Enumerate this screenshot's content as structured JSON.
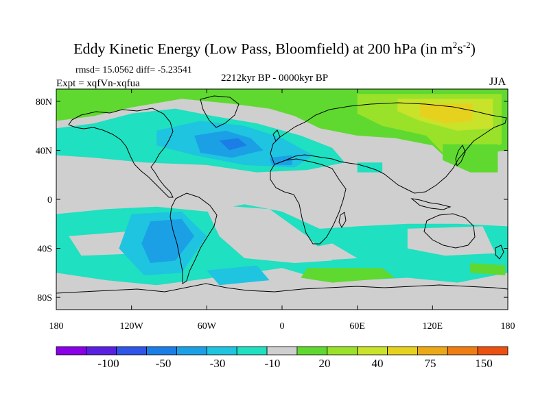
{
  "chart_data": {
    "type": "heatmap",
    "title": "Eddy Kinetic Energy (Low Pass, Bloomfield) at 200 hPa (in m",
    "title_unit_sup1": "2",
    "title_unit_mid": "s",
    "title_unit_sup2": "-2",
    "title_tail": ")",
    "stats": "rmsd= 15.0562 diff= -5.23541",
    "experiment": "Expt = xqfVn-xqfua",
    "period": "2212kyr BP - 0000kyr BP",
    "season": "JJA",
    "x_ticks": [
      "180",
      "120W",
      "60W",
      "0",
      "60E",
      "120E",
      "180"
    ],
    "y_ticks": [
      "80N",
      "40N",
      "0",
      "40S",
      "80S"
    ],
    "xlim": [
      -180,
      180
    ],
    "ylim": [
      -90,
      90
    ],
    "colorbar": {
      "colors": [
        "#8a00e6",
        "#5a1fe0",
        "#2f54e8",
        "#1a7ee6",
        "#1ba0e6",
        "#1ec4e0",
        "#1fe0c0",
        "#cfcfcf",
        "#5fd92f",
        "#9ae22a",
        "#c9e22a",
        "#e6d21e",
        "#eda815",
        "#ee7d12",
        "#ec5010"
      ],
      "labels": [
        "-100",
        "-50",
        "-30",
        "-10",
        "20",
        "40",
        "75",
        "150"
      ]
    },
    "colors": {
      "neutral": "#cfcfcf",
      "green": "#5fd92f",
      "yellow_green": "#9ae22a",
      "lime": "#c9e22a",
      "yellow": "#e6d21e",
      "teal": "#1fe0c0",
      "cyan": "#1ec4e0",
      "light_blue": "#1ba0e6",
      "blue": "#1a7ee6"
    },
    "regions": [
      {
        "level": "green",
        "points": [
          [
            -180,
            90
          ],
          [
            180,
            90
          ],
          [
            180,
            40
          ],
          [
            150,
            36
          ],
          [
            135,
            30
          ],
          [
            120,
            44
          ],
          [
            90,
            50
          ],
          [
            60,
            52
          ],
          [
            30,
            58
          ],
          [
            10,
            68
          ],
          [
            -10,
            74
          ],
          [
            -40,
            78
          ],
          [
            -80,
            82
          ],
          [
            -120,
            75
          ],
          [
            -150,
            68
          ],
          [
            -180,
            64
          ]
        ]
      },
      {
        "level": "yellow_green",
        "points": [
          [
            60,
            86
          ],
          [
            175,
            86
          ],
          [
            175,
            45
          ],
          [
            150,
            38
          ],
          [
            130,
            36
          ],
          [
            115,
            52
          ],
          [
            80,
            60
          ],
          [
            60,
            70
          ]
        ]
      },
      {
        "level": "lime",
        "points": [
          [
            92,
            82
          ],
          [
            168,
            82
          ],
          [
            168,
            58
          ],
          [
            140,
            56
          ],
          [
            110,
            64
          ],
          [
            92,
            72
          ]
        ]
      },
      {
        "level": "yellow",
        "points": [
          [
            110,
            78
          ],
          [
            152,
            78
          ],
          [
            152,
            64
          ],
          [
            130,
            62
          ],
          [
            110,
            68
          ]
        ]
      },
      {
        "level": "green",
        "points": [
          [
            128,
            45
          ],
          [
            172,
            45
          ],
          [
            172,
            22
          ],
          [
            150,
            22
          ],
          [
            128,
            32
          ]
        ]
      },
      {
        "level": "teal",
        "points": [
          [
            -180,
            58
          ],
          [
            -150,
            62
          ],
          [
            -120,
            70
          ],
          [
            -85,
            74
          ],
          [
            -55,
            68
          ],
          [
            -20,
            62
          ],
          [
            15,
            52
          ],
          [
            40,
            42
          ],
          [
            50,
            30
          ],
          [
            20,
            24
          ],
          [
            -20,
            22
          ],
          [
            -60,
            28
          ],
          [
            -110,
            30
          ],
          [
            -150,
            34
          ],
          [
            -180,
            36
          ]
        ]
      },
      {
        "level": "cyan",
        "points": [
          [
            -100,
            56
          ],
          [
            -65,
            64
          ],
          [
            -30,
            60
          ],
          [
            0,
            50
          ],
          [
            25,
            36
          ],
          [
            10,
            26
          ],
          [
            -30,
            28
          ],
          [
            -70,
            36
          ],
          [
            -100,
            44
          ]
        ]
      },
      {
        "level": "light_blue",
        "points": [
          [
            -70,
            52
          ],
          [
            -45,
            56
          ],
          [
            -25,
            50
          ],
          [
            -15,
            40
          ],
          [
            -40,
            34
          ],
          [
            -65,
            38
          ]
        ]
      },
      {
        "level": "blue",
        "points": [
          [
            -50,
            48
          ],
          [
            -35,
            50
          ],
          [
            -28,
            44
          ],
          [
            -42,
            40
          ]
        ]
      },
      {
        "level": "light_blue",
        "points": [
          [
            -10,
            34
          ],
          [
            8,
            36
          ],
          [
            8,
            28
          ],
          [
            -8,
            28
          ]
        ]
      },
      {
        "level": "teal",
        "points": [
          [
            -180,
            -12
          ],
          [
            -140,
            -8
          ],
          [
            -100,
            -6
          ],
          [
            -60,
            -10
          ],
          [
            -30,
            -4
          ],
          [
            0,
            -10
          ],
          [
            30,
            -24
          ],
          [
            60,
            -22
          ],
          [
            100,
            -20
          ],
          [
            140,
            -20
          ],
          [
            180,
            -22
          ],
          [
            180,
            -60
          ],
          [
            140,
            -68
          ],
          [
            100,
            -64
          ],
          [
            60,
            -66
          ],
          [
            20,
            -62
          ],
          [
            0,
            -56
          ],
          [
            -40,
            -62
          ],
          [
            -100,
            -70
          ],
          [
            -140,
            -66
          ],
          [
            -180,
            -60
          ]
        ]
      },
      {
        "level": "neutral",
        "points": [
          [
            -62,
            -4
          ],
          [
            -10,
            -8
          ],
          [
            20,
            -30
          ],
          [
            40,
            -50
          ],
          [
            10,
            -52
          ],
          [
            -30,
            -48
          ],
          [
            -50,
            -30
          ]
        ]
      },
      {
        "level": "neutral",
        "points": [
          [
            100,
            -24
          ],
          [
            160,
            -22
          ],
          [
            170,
            -44
          ],
          [
            130,
            -46
          ],
          [
            100,
            -40
          ]
        ]
      },
      {
        "level": "neutral",
        "points": [
          [
            20,
            -40
          ],
          [
            40,
            -36
          ],
          [
            60,
            -48
          ],
          [
            30,
            -50
          ]
        ]
      },
      {
        "level": "neutral",
        "points": [
          [
            -170,
            -30
          ],
          [
            -120,
            -26
          ],
          [
            -110,
            -44
          ],
          [
            -160,
            -46
          ]
        ]
      },
      {
        "level": "cyan",
        "points": [
          [
            -120,
            -12
          ],
          [
            -80,
            -10
          ],
          [
            -60,
            -30
          ],
          [
            -80,
            -60
          ],
          [
            -110,
            -62
          ],
          [
            -130,
            -40
          ]
        ]
      },
      {
        "level": "light_blue",
        "points": [
          [
            -105,
            -18
          ],
          [
            -80,
            -16
          ],
          [
            -70,
            -30
          ],
          [
            -85,
            -50
          ],
          [
            -105,
            -52
          ],
          [
            -112,
            -36
          ]
        ]
      },
      {
        "level": "cyan",
        "points": [
          [
            -60,
            -58
          ],
          [
            -20,
            -54
          ],
          [
            -10,
            -66
          ],
          [
            -50,
            -70
          ]
        ]
      },
      {
        "level": "green",
        "points": [
          [
            20,
            -56
          ],
          [
            80,
            -56
          ],
          [
            90,
            -64
          ],
          [
            40,
            -68
          ],
          [
            15,
            -64
          ]
        ]
      },
      {
        "level": "green",
        "points": [
          [
            150,
            -52
          ],
          [
            178,
            -54
          ],
          [
            178,
            -62
          ],
          [
            150,
            -60
          ]
        ]
      },
      {
        "level": "teal",
        "points": [
          [
            60,
            30
          ],
          [
            80,
            30
          ],
          [
            80,
            22
          ],
          [
            60,
            22
          ]
        ]
      }
    ]
  }
}
